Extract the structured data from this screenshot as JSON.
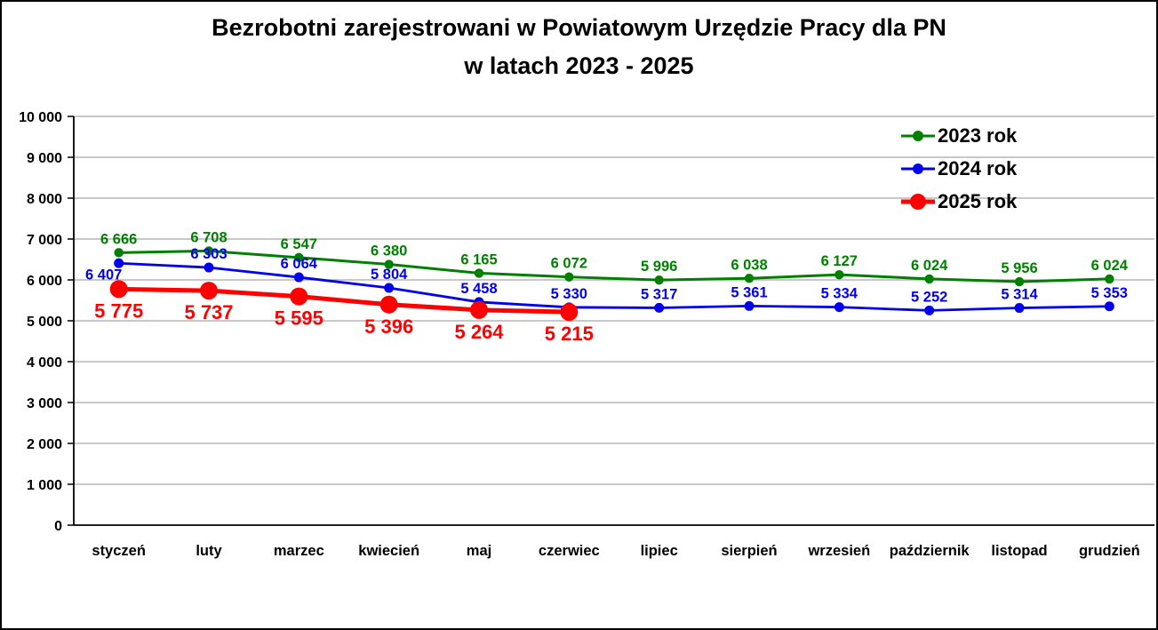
{
  "window": {
    "background_color": "#ffffff",
    "border_color": "#000000"
  },
  "chart_data": {
    "type": "line",
    "title": "Bezrobotni zarejestrowani w Powiatowym Urzędzie Pracy dla PN w latach 2023 - 2025",
    "title_lines": [
      "Bezrobotni zarejestrowani w Powiatowym Urzędzie Pracy dla PN",
      "w latach 2023 - 2025"
    ],
    "categories": [
      "styczeń",
      "luty",
      "marzec",
      "kwiecień",
      "maj",
      "czerwiec",
      "lipiec",
      "sierpień",
      "wrzesień",
      "październik",
      "listopad",
      "grudzień"
    ],
    "series": [
      {
        "name": "2023 rok",
        "color": "#008000",
        "values": [
          6666,
          6708,
          6547,
          6380,
          6165,
          6072,
          5996,
          6038,
          6127,
          6024,
          5956,
          6024
        ],
        "labels": [
          "6 666",
          "6 708",
          "6 547",
          "6 380",
          "6 165",
          "6 072",
          "5 996",
          "6 038",
          "6 127",
          "6 024",
          "5 956",
          "6 024"
        ]
      },
      {
        "name": "2024 rok",
        "color": "#0000ee",
        "values": [
          6407,
          6303,
          6064,
          5804,
          5458,
          5330,
          5317,
          5361,
          5334,
          5252,
          5314,
          5353
        ],
        "labels": [
          "6 407",
          "6 303",
          "6 064",
          "5 804",
          "5 458",
          "5 330",
          "5 317",
          "5 361",
          "5 334",
          "5 252",
          "5 314",
          "5 353"
        ]
      },
      {
        "name": "2025 rok",
        "color": "#ff0000",
        "values": [
          5775,
          5737,
          5595,
          5396,
          5264,
          5215
        ],
        "labels": [
          "5 775",
          "5 737",
          "5 595",
          "5 396",
          "5 264",
          "5 215"
        ]
      }
    ],
    "y_axis": {
      "min": 0,
      "max": 10000,
      "step": 1000,
      "tick_labels": [
        "0",
        "1 000",
        "2 000",
        "3 000",
        "4 000",
        "5 000",
        "6 000",
        "7 000",
        "8 000",
        "9 000",
        "10 000"
      ]
    },
    "grid": true,
    "gridline_color": "#a6a6a6",
    "axis_color": "#000000",
    "text_color": "#000000",
    "legend_position": "top-right"
  }
}
